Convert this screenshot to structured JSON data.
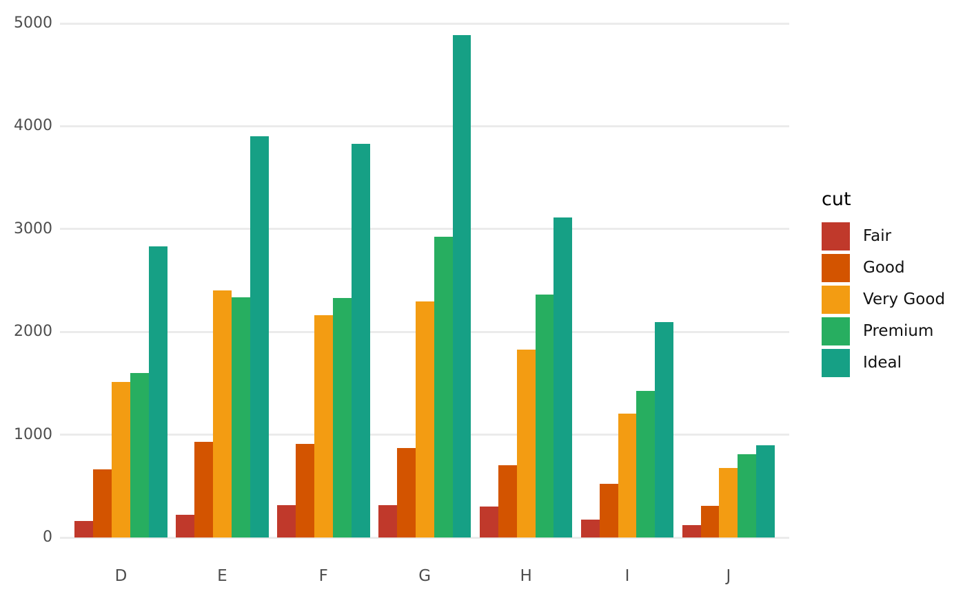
{
  "chart_data": {
    "type": "bar",
    "title": "",
    "xlabel": "",
    "ylabel": "",
    "categories": [
      "D",
      "E",
      "F",
      "G",
      "H",
      "I",
      "J"
    ],
    "series": [
      {
        "name": "Fair",
        "color": "#c0392b",
        "values": [
          163,
          224,
          312,
          314,
          303,
          175,
          119
        ]
      },
      {
        "name": "Good",
        "color": "#d35400",
        "values": [
          662,
          933,
          909,
          871,
          702,
          522,
          307
        ]
      },
      {
        "name": "Very Good",
        "color": "#f39c12",
        "values": [
          1513,
          2400,
          2164,
          2299,
          1824,
          1204,
          678
        ]
      },
      {
        "name": "Premium",
        "color": "#27ae60",
        "values": [
          1603,
          2337,
          2331,
          2924,
          2360,
          1428,
          808
        ]
      },
      {
        "name": "Ideal",
        "color": "#16a085",
        "values": [
          2834,
          3903,
          3826,
          4884,
          3115,
          2093,
          896
        ]
      }
    ],
    "y_ticks": [
      0,
      1000,
      2000,
      3000,
      4000,
      5000
    ],
    "ylim": [
      0,
      5000
    ],
    "grid": true,
    "grid_color": "#ebebeb",
    "background_color": "#ffffff",
    "axis_text_color": "#4d4d4d",
    "legend": {
      "title": "cut",
      "position": "right",
      "text_color": "#111111"
    }
  }
}
